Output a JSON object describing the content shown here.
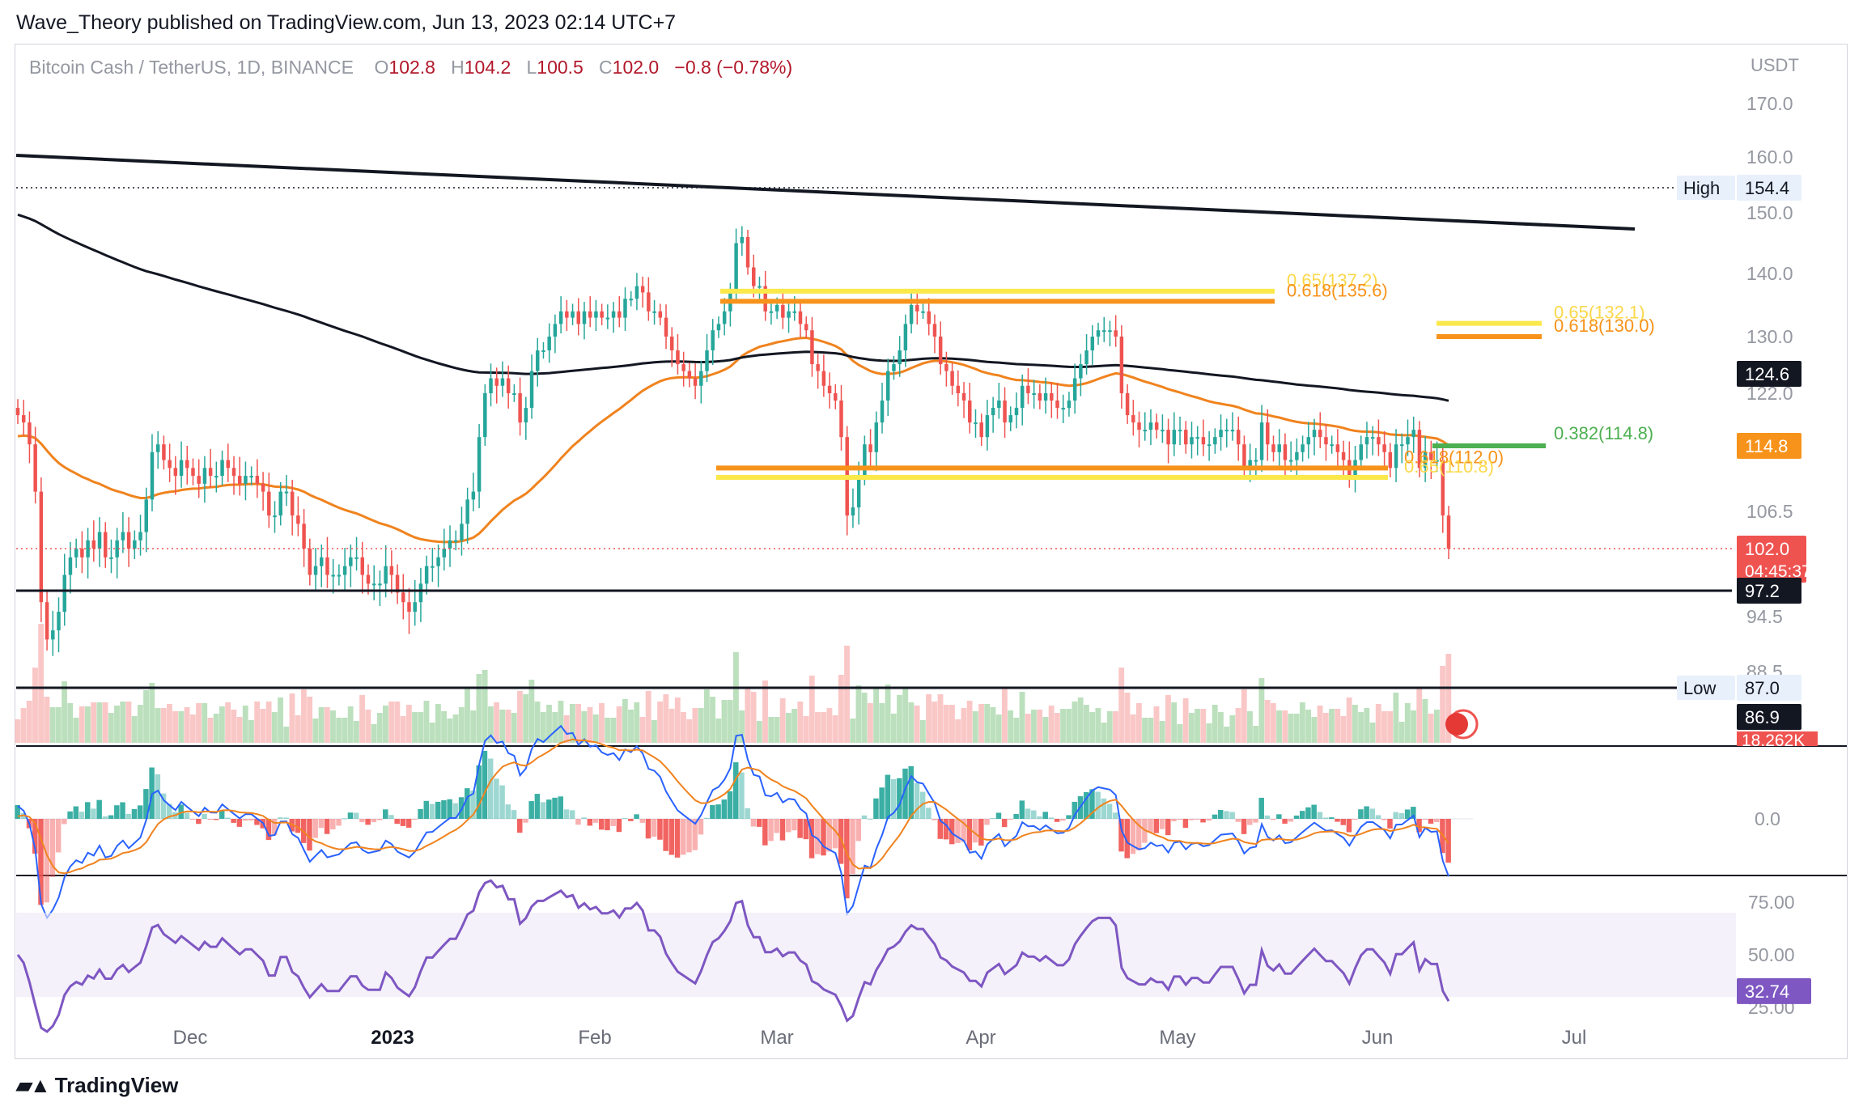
{
  "header": {
    "published": "Wave_Theory published on TradingView.com, Jun 13, 2023 02:14 UTC+7"
  },
  "legend": {
    "symbol": "Bitcoin Cash / TetherUS, 1D, BINANCE",
    "o_label": "O",
    "o_value": "102.8",
    "h_label": "H",
    "h_value": "104.2",
    "l_label": "L",
    "l_value": "100.5",
    "c_label": "C",
    "c_value": "102.0",
    "change": "−0.8 (−0.78%)"
  },
  "footer": {
    "brand": "TradingView"
  },
  "colors": {
    "up": "#26a69a",
    "down": "#ef5350",
    "ema50": "#f0831e",
    "ema200": "#131722",
    "fib_yellow": "#fbe84a",
    "fib_orange": "#f7931a",
    "fib_green": "#4caf50",
    "rsi": "#7e57c2",
    "macd": "#2962ff",
    "signal": "#f0831e"
  },
  "chart_data": {
    "type": "candlestick",
    "symbol": "Bitcoin Cash / TetherUS",
    "timeframe": "1D",
    "exchange": "BINANCE",
    "currency": "USDT",
    "x_ticks": [
      "Dec",
      "2023",
      "Feb",
      "Mar",
      "Apr",
      "May",
      "Jun",
      "Jul"
    ],
    "price_axis_ticks": [
      "170.0",
      "160.0",
      "150.0",
      "140.0",
      "130.0",
      "122.0",
      "106.5",
      "94.5",
      "88.5"
    ],
    "ohlc_last": {
      "open": 102.8,
      "high": 104.2,
      "low": 100.5,
      "close": 102.0,
      "change": -0.8,
      "change_pct": -0.78
    },
    "price_labels": [
      {
        "text": "154.4",
        "tag": "High",
        "price": 154.4
      },
      {
        "text": "124.6",
        "price": 124.6
      },
      {
        "text": "114.8",
        "price": 114.8
      },
      {
        "text": "102.0",
        "countdown": "04:45:37",
        "price": 102.0
      },
      {
        "text": "97.2",
        "price": 97.2
      },
      {
        "text": "87.0",
        "tag": "Low",
        "price": 87.0
      },
      {
        "text": "86.9",
        "price": 86.9
      },
      {
        "text": "18.262K"
      }
    ],
    "fib_levels": [
      {
        "text": "0.65(137.2)",
        "price": 137.2
      },
      {
        "text": "0.618(135.6)",
        "price": 135.6
      },
      {
        "text": "0.65(132.1)",
        "price": 132.1
      },
      {
        "text": "0.618(130.0)",
        "price": 130.0
      },
      {
        "text": "0.382(114.8)",
        "price": 114.8
      },
      {
        "text": "0.618(112.0)",
        "price": 112.0
      },
      {
        "text": "0.65(110.8)",
        "price": 110.8
      }
    ],
    "horizontal_lines": [
      97.2,
      87.0
    ],
    "macd": {
      "zero_label": "0.0"
    },
    "rsi": {
      "ticks": [
        "75.00",
        "50.00",
        "25.00"
      ],
      "value": "32.74"
    },
    "closes": [
      119,
      118,
      115,
      109,
      96,
      92,
      93,
      95,
      99,
      101,
      102,
      101,
      103,
      102,
      104,
      101,
      101,
      103,
      104,
      102,
      103,
      104,
      108,
      114,
      115,
      113,
      112,
      111,
      113,
      112,
      111,
      110,
      112,
      111,
      111,
      113,
      112,
      111,
      110,
      111,
      111,
      110,
      109,
      106,
      106,
      109,
      109,
      106,
      105,
      102,
      99,
      100,
      101,
      99,
      99,
      99,
      100,
      101,
      101,
      99,
      98,
      98,
      98,
      100,
      99,
      97,
      96,
      95,
      96,
      98,
      100,
      100,
      101,
      102,
      103,
      103,
      105,
      108,
      109,
      116,
      122,
      124,
      123,
      124,
      122,
      122,
      118,
      120,
      125,
      128,
      128,
      130,
      132,
      134,
      133,
      134,
      132,
      134,
      133,
      134,
      133,
      133,
      134,
      133,
      136,
      136,
      138,
      137,
      134,
      134,
      133,
      130,
      128,
      126,
      125,
      124,
      123,
      125,
      128,
      131,
      132,
      134,
      137,
      145,
      146,
      141,
      138,
      138,
      134,
      134,
      135,
      133,
      134,
      134,
      132,
      131,
      126,
      125,
      123,
      122,
      121,
      116,
      106,
      107,
      111,
      115,
      114,
      118,
      121,
      125,
      126,
      128,
      132,
      135,
      134,
      134,
      132,
      130,
      126,
      125,
      123,
      122,
      121,
      118,
      118,
      116,
      119,
      120,
      121,
      118,
      119,
      120,
      123,
      122,
      122,
      121,
      122,
      121,
      120,
      120,
      121,
      124,
      126,
      128,
      130,
      131,
      131,
      131,
      130,
      122,
      119,
      118,
      117,
      117,
      118,
      117,
      117,
      115,
      117,
      117,
      115,
      116,
      116,
      115,
      115,
      116,
      117,
      117,
      117,
      115,
      112,
      113,
      113,
      118,
      115,
      114,
      115,
      113,
      113,
      114,
      115,
      116,
      117,
      116,
      115,
      115,
      114,
      113,
      111,
      113,
      115,
      116,
      116,
      115,
      114,
      112,
      115,
      115,
      116,
      117,
      112,
      114,
      113,
      113,
      106,
      102
    ]
  }
}
